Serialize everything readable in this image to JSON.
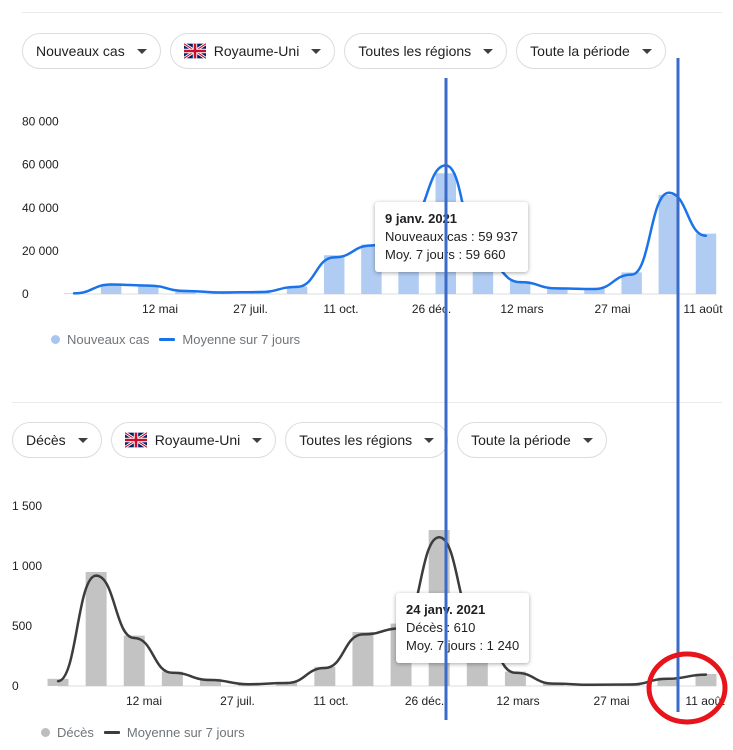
{
  "colors": {
    "cases_bar": "#a9c6f2",
    "cases_line": "#1a73e8",
    "deaths_bar": "#bdbdbd",
    "deaths_line": "#3c3c3c",
    "annotation_line": "#3b6bc9",
    "annotation_circle": "#e8141c"
  },
  "icons": {
    "dropdown": "caret-down-icon",
    "flag": "uk-flag-icon"
  },
  "cases_panel": {
    "filters": [
      {
        "label": "Nouveaux cas",
        "flag": false
      },
      {
        "label": "Royaume-Uni",
        "flag": true
      },
      {
        "label": "Toutes les régions",
        "flag": false
      },
      {
        "label": "Toute la période",
        "flag": false
      }
    ],
    "legend": {
      "bars": "Nouveaux cas",
      "line": "Moyenne sur 7 jours"
    },
    "tooltip": {
      "date": "9 janv. 2021",
      "row1": "Nouveaux cas : 59 937",
      "row2": "Moy. 7 jours : 59 660"
    }
  },
  "deaths_panel": {
    "filters": [
      {
        "label": "Décès",
        "flag": false
      },
      {
        "label": "Royaume-Uni",
        "flag": true
      },
      {
        "label": "Toutes les régions",
        "flag": false
      },
      {
        "label": "Toute la période",
        "flag": false
      }
    ],
    "legend": {
      "bars": "Décès",
      "line": "Moyenne sur 7 jours"
    },
    "tooltip": {
      "date": "24 janv. 2021",
      "row1": "Décès : 610",
      "row2": "Moy. 7 jours : 1 240"
    }
  },
  "chart_data": [
    {
      "type": "bar",
      "xaxis_type": "time",
      "x_ticks": [
        "12 mai",
        "27 juil.",
        "11 oct.",
        "26 déc.",
        "12 mars",
        "27 mai",
        "11 août"
      ],
      "y_ticks": [
        "0",
        "20 000",
        "40 000",
        "60 000",
        "80 000"
      ],
      "ylim": [
        0,
        90000
      ],
      "grid": false,
      "legend_position": "bottom-left",
      "series": [
        {
          "name": "Nouveaux cas",
          "type": "bar",
          "x": [
            "mars 2020",
            "avr. 2020",
            "mai 2020",
            "juin 2020",
            "juil. 2020",
            "août 2020",
            "sept. 2020",
            "oct. 2020",
            "nov. 2020",
            "déc. 2020",
            "janv. 2021",
            "févr. 2021",
            "mars 2021",
            "avr. 2021",
            "mai 2021",
            "juin 2021",
            "juil. 2021",
            "août 2021"
          ],
          "values": [
            300,
            4500,
            4000,
            1500,
            700,
            1000,
            3500,
            18000,
            23000,
            35000,
            56000,
            17000,
            6000,
            2800,
            2400,
            10000,
            46000,
            28000
          ]
        },
        {
          "name": "Moyenne sur 7 jours",
          "type": "line",
          "x": [
            "mars 2020",
            "avr. 2020",
            "mai 2020",
            "juin 2020",
            "juil. 2020",
            "août 2020",
            "sept. 2020",
            "oct. 2020",
            "nov. 2020",
            "déc. 2020",
            "janv. 2021",
            "févr. 2021",
            "mars 2021",
            "avr. 2021",
            "mai 2021",
            "juin 2021",
            "juil. 2021",
            "août 2021"
          ],
          "values": [
            300,
            4400,
            3900,
            1400,
            700,
            900,
            3300,
            17000,
            22500,
            34000,
            59660,
            16000,
            5500,
            2600,
            2300,
            9000,
            47000,
            27000
          ]
        }
      ],
      "annotations": [
        {
          "date": "9 janv. 2021",
          "Nouveaux cas": 59937,
          "Moy. 7 jours": 59660
        }
      ]
    },
    {
      "type": "bar",
      "xaxis_type": "time",
      "x_ticks": [
        "12 mai",
        "27 juil.",
        "11 oct.",
        "26 déc.",
        "12 mars",
        "27 mai",
        "11 août"
      ],
      "y_ticks": [
        "0",
        "500",
        "1 000",
        "1 500"
      ],
      "ylim": [
        0,
        1800
      ],
      "grid": false,
      "legend_position": "bottom-left",
      "series": [
        {
          "name": "Décès",
          "type": "bar",
          "x": [
            "mars 2020",
            "avr. 2020",
            "mai 2020",
            "juin 2020",
            "juil. 2020",
            "août 2020",
            "sept. 2020",
            "oct. 2020",
            "nov. 2020",
            "déc. 2020",
            "janv. 2021",
            "févr. 2021",
            "mars 2021",
            "avr. 2021",
            "mai 2021",
            "juin 2021",
            "juil. 2021",
            "août 2021"
          ],
          "values": [
            60,
            950,
            420,
            120,
            60,
            20,
            30,
            160,
            450,
            520,
            1300,
            520,
            120,
            25,
            10,
            15,
            70,
            100
          ]
        },
        {
          "name": "Moyenne sur 7 jours",
          "type": "line",
          "x": [
            "mars 2020",
            "avr. 2020",
            "mai 2020",
            "juin 2020",
            "juil. 2020",
            "août 2020",
            "sept. 2020",
            "oct. 2020",
            "nov. 2020",
            "déc. 2020",
            "janv. 2021",
            "févr. 2021",
            "mars 2021",
            "avr. 2021",
            "mai 2021",
            "juin 2021",
            "juil. 2021",
            "août 2021"
          ],
          "values": [
            40,
            920,
            400,
            110,
            50,
            15,
            25,
            150,
            430,
            480,
            1240,
            500,
            110,
            20,
            10,
            12,
            60,
            95
          ]
        }
      ],
      "annotations": [
        {
          "date": "24 janv. 2021",
          "Décès": 610,
          "Moy. 7 jours": 1240
        }
      ]
    }
  ]
}
